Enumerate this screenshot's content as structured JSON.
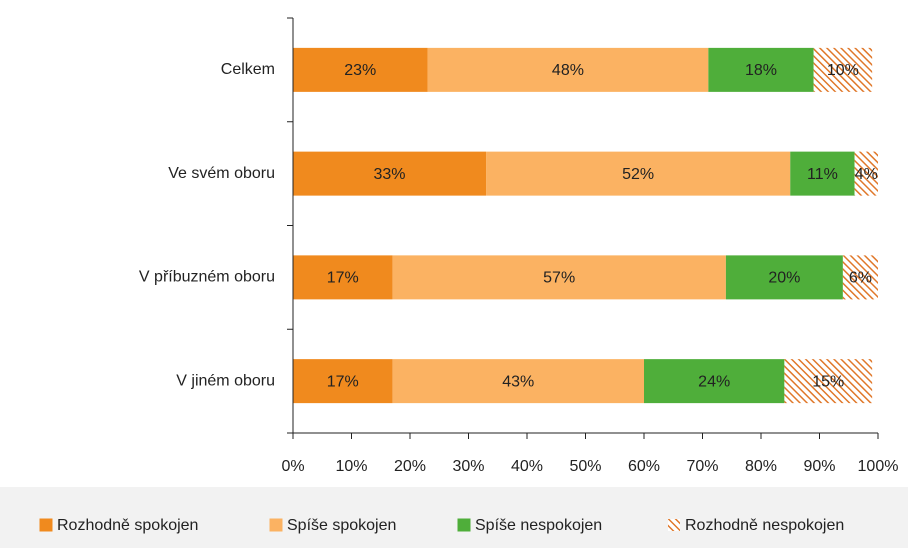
{
  "chart_data": {
    "type": "stacked-bar-horizontal",
    "categories": [
      "Celkem",
      "Ve svém oboru",
      "V příbuzném oboru",
      "V jiném oboru"
    ],
    "series": [
      {
        "name": "Rozhodně spokojen",
        "color": "#f08a1e",
        "values": [
          23,
          33,
          17,
          17
        ],
        "value_labels": [
          "23%",
          "33%",
          "17%",
          "17%"
        ]
      },
      {
        "name": "Spíše spokojen",
        "color": "#fbb262",
        "values": [
          48,
          52,
          57,
          43
        ],
        "value_labels": [
          "48%",
          "52%",
          "57%",
          "43%"
        ]
      },
      {
        "name": "Spíše nespokojen",
        "color": "#4fae3a",
        "values": [
          18,
          11,
          20,
          24
        ],
        "value_labels": [
          "18%",
          "11%",
          "20%",
          "24%"
        ]
      },
      {
        "name": "Rozhodně nespokojen",
        "color": "#e0782a",
        "pattern": "hatch",
        "values": [
          10,
          4,
          6,
          15
        ],
        "value_labels": [
          "10%",
          "4%",
          "6%",
          "15%"
        ]
      }
    ],
    "xlim": [
      0,
      100
    ],
    "xticks": [
      {
        "value": 0,
        "label": "0%"
      },
      {
        "value": 10,
        "label": "10%"
      },
      {
        "value": 20,
        "label": "20%"
      },
      {
        "value": 30,
        "label": "30%"
      },
      {
        "value": 40,
        "label": "40%"
      },
      {
        "value": 50,
        "label": "50%"
      },
      {
        "value": 60,
        "label": "60%"
      },
      {
        "value": 70,
        "label": "70%"
      },
      {
        "value": 80,
        "label": "80%"
      },
      {
        "value": 90,
        "label": "90%"
      },
      {
        "value": 100,
        "label": "100%"
      }
    ],
    "legend": "bottom"
  }
}
